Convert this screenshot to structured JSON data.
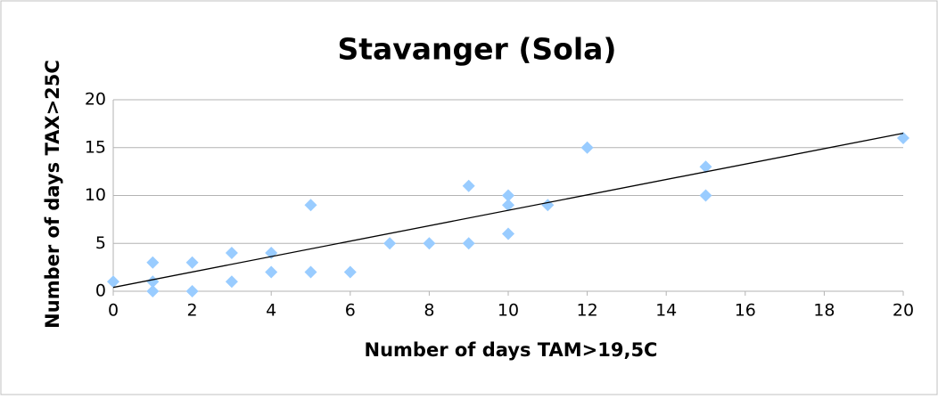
{
  "chart_data": {
    "type": "scatter",
    "title": "Stavanger (Sola)",
    "x_label": "Number of days TAM>19,5C",
    "y_label": "Number of days TAX>25C",
    "series": [
      {
        "name": "Stavanger (Sola)",
        "color": "#99ccff",
        "x": [
          0,
          1,
          1,
          1,
          2,
          2,
          3,
          3,
          4,
          4,
          5,
          5,
          6,
          7,
          8,
          9,
          9,
          10,
          10,
          10,
          11,
          12,
          15,
          15,
          20
        ],
        "values": [
          1,
          3,
          1,
          0,
          3,
          0,
          4,
          1,
          4,
          2,
          9,
          2,
          2,
          5,
          5,
          11,
          5,
          10,
          9,
          6,
          9,
          15,
          13,
          10,
          16
        ]
      }
    ],
    "trendline": {
      "x": [
        0,
        20
      ],
      "values": [
        0.4,
        16.5
      ],
      "color": "#000000"
    },
    "xlim": [
      0,
      20
    ],
    "xticks": [
      0,
      2,
      4,
      6,
      8,
      10,
      12,
      14,
      16,
      18,
      20
    ],
    "ylim": [
      0,
      20
    ],
    "yticks": [
      0,
      5,
      10,
      15,
      20
    ],
    "grid": true
  }
}
